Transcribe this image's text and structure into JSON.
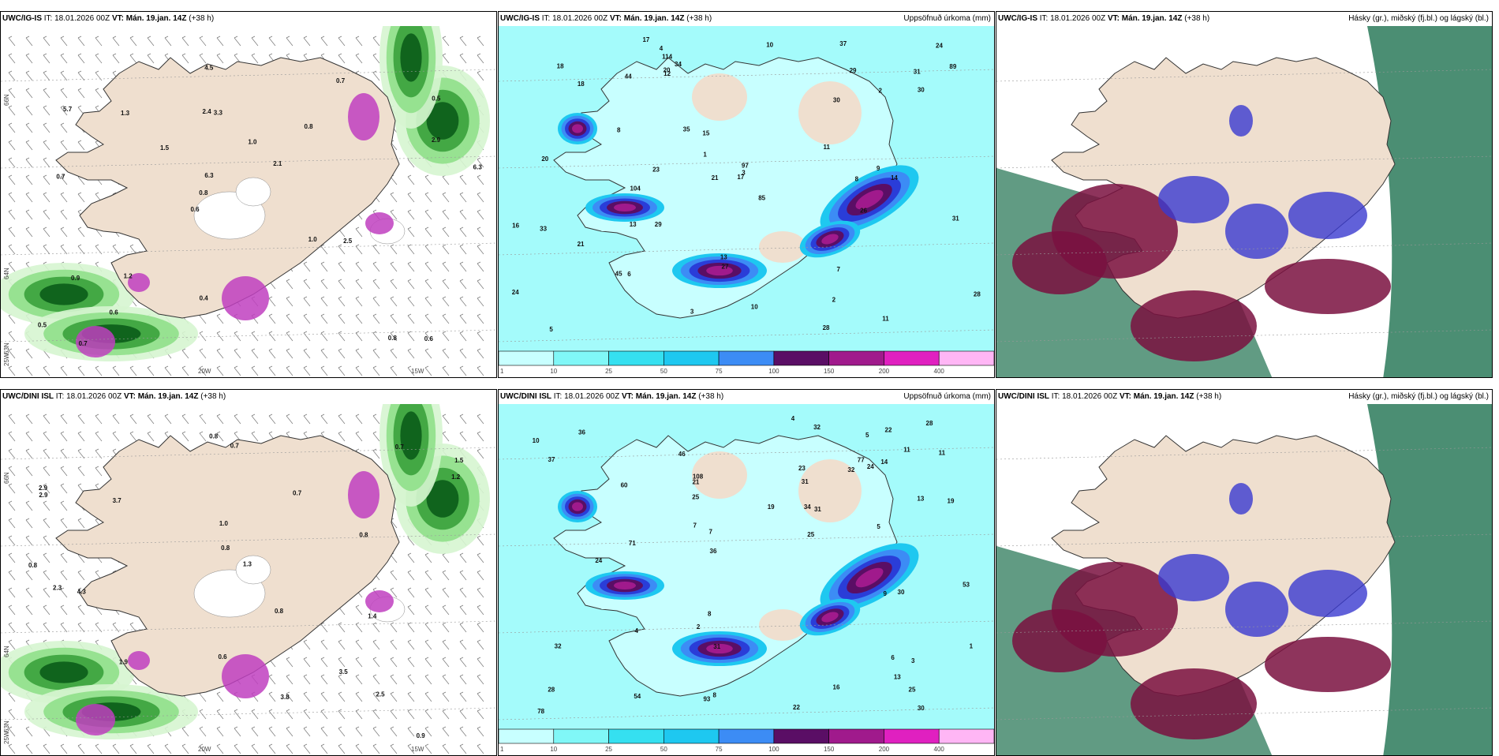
{
  "panels": [
    {
      "model": "UWC/IG-IS",
      "it_label": "IT:",
      "it_value": "18.01.2026 00Z",
      "vt_label": "VT:",
      "vt_value": "Mán. 19.jan. 14Z",
      "lead": "(+38 h)",
      "right_title": "",
      "kind": "wind",
      "values": [
        "0.6",
        "0.7",
        "0.5",
        "0.6",
        "0.8",
        "0.7",
        "2.4",
        "1.0",
        "0.9",
        "1.5",
        "0.5",
        "0.6",
        "3.3",
        "2.1",
        "2.5",
        "5.7",
        "4.5",
        "6.3",
        "1.0",
        "2.9",
        "0.8",
        "0.4",
        "6.3",
        "1.3",
        "0.7",
        "1.2",
        "0.8"
      ],
      "lat_labels": [
        "66N",
        "64N",
        "63N",
        "25W",
        "20W",
        "15W"
      ]
    },
    {
      "model": "UWC/IG-IS",
      "it_label": "IT:",
      "it_value": "18.01.2026 00Z",
      "vt_label": "VT:",
      "vt_value": "Mán. 19.jan. 14Z",
      "lead": "(+38 h)",
      "right_title": "Uppsöfnuð úrkoma (mm)",
      "kind": "precip",
      "values": [
        "17",
        "16",
        "18",
        "23",
        "28",
        "30",
        "24",
        "28",
        "26",
        "24",
        "29",
        "33",
        "35",
        "31",
        "21",
        "37",
        "44",
        "114",
        "104",
        "85",
        "89",
        "34",
        "18",
        "12",
        "20",
        "15",
        "14",
        "10",
        "11",
        "8",
        "6",
        "13",
        "21",
        "31",
        "97",
        "45",
        "30",
        "29",
        "27",
        "20",
        "17",
        "13",
        "4",
        "3",
        "10",
        "9",
        "7",
        "5",
        "11",
        "8",
        "3",
        "2",
        "1",
        "2"
      ],
      "colorbar": [
        "1",
        "10",
        "25",
        "50",
        "75",
        "100",
        "150",
        "200",
        "400"
      ]
    },
    {
      "model": "UWC/IG-IS",
      "it_label": "IT:",
      "it_value": "18.01.2026 00Z",
      "vt_label": "VT:",
      "vt_value": "Mán. 19.jan. 14Z",
      "lead": "(+38 h)",
      "right_title": "Hásky (gr.), miðský (fj.bl.) og lágský (bl.)",
      "kind": "cloud"
    },
    {
      "model": "UWC/DINI ISL",
      "it_label": "IT:",
      "it_value": "18.01.2026 00Z",
      "vt_label": "VT:",
      "vt_value": "Mán. 19.jan. 14Z",
      "lead": "(+38 h)",
      "right_title": "",
      "kind": "wind",
      "values": [
        "0.8",
        "0.7",
        "0.8",
        "1.5",
        "2.9",
        "0.9",
        "4.3",
        "0.7",
        "1.0",
        "0.7",
        "1.3",
        "1.4",
        "0.8",
        "2.9",
        "3.7",
        "1.9",
        "3.8",
        "2.3",
        "0.8",
        "0.6",
        "3.5",
        "2.5",
        "1.2",
        "0.8"
      ],
      "lat_labels": [
        "66N",
        "64N",
        "63N",
        "25W",
        "20W",
        "15W"
      ]
    },
    {
      "model": "UWC/DINI ISL",
      "it_label": "IT:",
      "it_value": "18.01.2026 00Z",
      "vt_label": "VT:",
      "vt_value": "Mán. 19.jan. 14Z",
      "lead": "(+38 h)",
      "right_title": "Uppsöfnuð úrkoma (mm)",
      "kind": "precip",
      "values": [
        "22",
        "25",
        "19",
        "28",
        "28",
        "31",
        "32",
        "32",
        "37",
        "31",
        "24",
        "25",
        "46",
        "36",
        "34",
        "30",
        "93",
        "108",
        "24",
        "78",
        "71",
        "77",
        "16",
        "19",
        "25",
        "32",
        "23",
        "11",
        "4",
        "5",
        "10",
        "13",
        "21",
        "14",
        "22",
        "5",
        "8",
        "7",
        "60",
        "54",
        "53",
        "36",
        "31",
        "30",
        "13",
        "11",
        "8",
        "4",
        "2",
        "1",
        "6",
        "7",
        "3",
        "9"
      ],
      "colorbar": [
        "1",
        "10",
        "25",
        "50",
        "75",
        "100",
        "150",
        "200",
        "400"
      ]
    },
    {
      "model": "UWC/DINI ISL",
      "it_label": "IT:",
      "it_value": "18.01.2026 00Z",
      "vt_label": "VT:",
      "vt_value": "Mán. 19.jan. 14Z",
      "lead": "(+38 h)",
      "right_title": "Hásky (gr.), miðský (fj.bl.) og lágský (bl.)",
      "kind": "cloud"
    }
  ],
  "colors": {
    "land": "#efdfcf",
    "sea": "#ffffff",
    "precip": [
      "#c8ffff",
      "#80f7f7",
      "#35e0f0",
      "#1ec8f0",
      "#3c8cf5",
      "#2a3dd8",
      "#5a0e65",
      "#a01a8c",
      "#e020c0",
      "#ffb6f5"
    ],
    "high_cloud": "#2c7a5a",
    "mid_cloud": "#7a1040",
    "low_cloud": "#3a3ad0"
  }
}
